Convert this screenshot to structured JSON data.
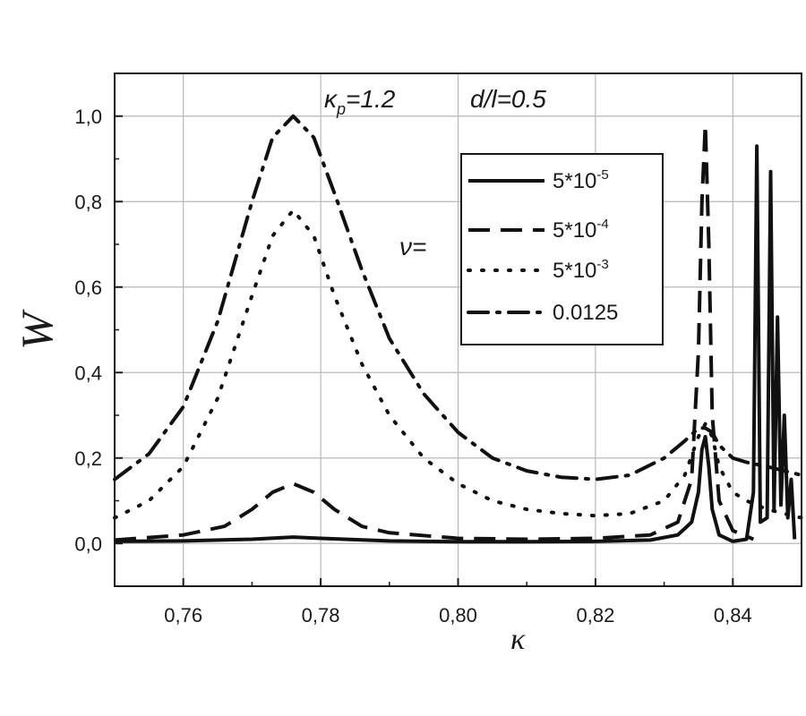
{
  "chart_data": {
    "type": "line",
    "xlabel": "κ",
    "ylabel": "W",
    "xlim": [
      0.75,
      0.85
    ],
    "ylim": [
      -0.1,
      1.1
    ],
    "xticks": [
      0.76,
      0.78,
      0.8,
      0.82,
      0.84
    ],
    "xtick_labels": [
      "0,76",
      "0,78",
      "0,80",
      "0,82",
      "0,84"
    ],
    "yticks": [
      0.0,
      0.2,
      0.4,
      0.6,
      0.8,
      1.0
    ],
    "ytick_labels": [
      "0,0",
      "0,2",
      "0,4",
      "0,6",
      "0,8",
      "1,0"
    ],
    "grid": true,
    "legend_position": "top-right",
    "legend_prefix": "ν=",
    "annotations": {
      "kappa_symbol": "κ",
      "kappa_subscript": "p",
      "kappa_value": "=1.2",
      "dl": "d/l=0.5"
    },
    "series": [
      {
        "name": "5*10",
        "exponent": "-5",
        "style": "solid",
        "x": [
          0.75,
          0.76,
          0.77,
          0.776,
          0.78,
          0.79,
          0.8,
          0.81,
          0.82,
          0.828,
          0.832,
          0.834,
          0.835,
          0.8355,
          0.836,
          0.8365,
          0.837,
          0.838,
          0.84,
          0.842,
          0.843,
          0.8435,
          0.844,
          0.845,
          0.8455,
          0.846,
          0.8465,
          0.847,
          0.8475,
          0.848,
          0.8485,
          0.849
        ],
        "y": [
          0.005,
          0.006,
          0.01,
          0.015,
          0.012,
          0.006,
          0.004,
          0.004,
          0.005,
          0.008,
          0.02,
          0.05,
          0.12,
          0.22,
          0.25,
          0.18,
          0.08,
          0.02,
          0.005,
          0.01,
          0.12,
          0.93,
          0.05,
          0.06,
          0.87,
          0.08,
          0.53,
          0.09,
          0.3,
          0.06,
          0.15,
          0.01
        ]
      },
      {
        "name": "5*10",
        "exponent": "-4",
        "style": "dashed",
        "x": [
          0.75,
          0.76,
          0.766,
          0.77,
          0.773,
          0.776,
          0.779,
          0.782,
          0.786,
          0.79,
          0.8,
          0.81,
          0.82,
          0.828,
          0.832,
          0.834,
          0.835,
          0.8355,
          0.836,
          0.8365,
          0.837,
          0.838,
          0.84,
          0.843
        ],
        "y": [
          0.008,
          0.02,
          0.04,
          0.08,
          0.12,
          0.14,
          0.12,
          0.08,
          0.04,
          0.025,
          0.012,
          0.01,
          0.012,
          0.02,
          0.05,
          0.15,
          0.45,
          0.8,
          0.98,
          0.7,
          0.3,
          0.1,
          0.03,
          0.01
        ]
      },
      {
        "name": "5*10",
        "exponent": "-3",
        "style": "dotted",
        "x": [
          0.75,
          0.755,
          0.76,
          0.765,
          0.77,
          0.773,
          0.776,
          0.779,
          0.782,
          0.786,
          0.79,
          0.795,
          0.8,
          0.805,
          0.81,
          0.815,
          0.82,
          0.825,
          0.83,
          0.833,
          0.835,
          0.836,
          0.837,
          0.838,
          0.84,
          0.842,
          0.845,
          0.85
        ],
        "y": [
          0.06,
          0.1,
          0.18,
          0.34,
          0.58,
          0.72,
          0.78,
          0.72,
          0.58,
          0.42,
          0.3,
          0.2,
          0.14,
          0.1,
          0.08,
          0.07,
          0.065,
          0.07,
          0.1,
          0.16,
          0.25,
          0.28,
          0.25,
          0.18,
          0.12,
          0.1,
          0.08,
          0.06
        ]
      },
      {
        "name": "0.0125",
        "exponent": "",
        "style": "dashdot",
        "x": [
          0.75,
          0.755,
          0.76,
          0.765,
          0.77,
          0.773,
          0.776,
          0.779,
          0.782,
          0.786,
          0.79,
          0.795,
          0.8,
          0.805,
          0.81,
          0.815,
          0.82,
          0.825,
          0.83,
          0.833,
          0.835,
          0.836,
          0.837,
          0.838,
          0.84,
          0.842,
          0.845,
          0.85
        ],
        "y": [
          0.15,
          0.21,
          0.32,
          0.52,
          0.8,
          0.95,
          1.0,
          0.95,
          0.82,
          0.64,
          0.48,
          0.35,
          0.26,
          0.2,
          0.17,
          0.155,
          0.15,
          0.16,
          0.2,
          0.24,
          0.27,
          0.27,
          0.26,
          0.23,
          0.2,
          0.19,
          0.18,
          0.16
        ]
      }
    ]
  }
}
